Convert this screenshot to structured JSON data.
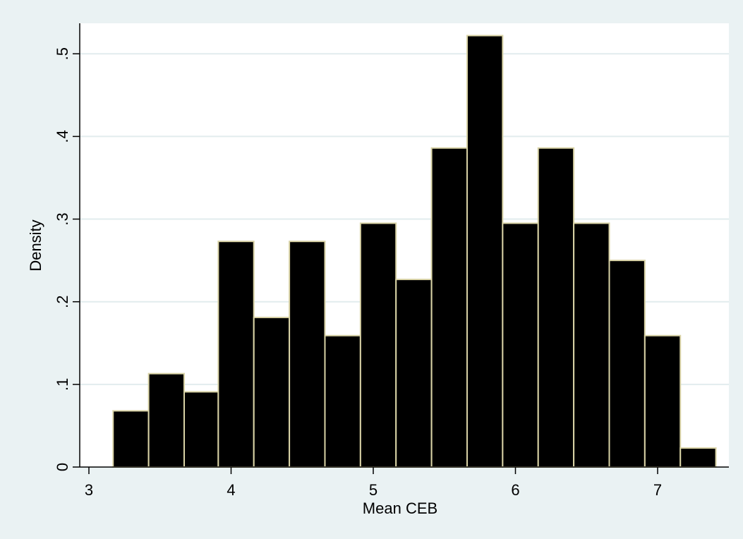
{
  "chart_data": {
    "type": "bar",
    "title": "",
    "xlabel": "Mean CEB",
    "ylabel": "Density",
    "xlim": [
      3,
      7.5
    ],
    "ylim": [
      0,
      0.55
    ],
    "x_ticks": [
      {
        "value": 3,
        "label": "3"
      },
      {
        "value": 4,
        "label": "4"
      },
      {
        "value": 5,
        "label": "5"
      },
      {
        "value": 6,
        "label": "6"
      },
      {
        "value": 7,
        "label": "7"
      }
    ],
    "y_ticks": [
      {
        "value": 0,
        "label": "0"
      },
      {
        "value": 0.1,
        "label": ".1"
      },
      {
        "value": 0.2,
        "label": ".2"
      },
      {
        "value": 0.3,
        "label": ".3"
      },
      {
        "value": 0.4,
        "label": ".4"
      },
      {
        "value": 0.5,
        "label": ".5"
      }
    ],
    "grid": "horizontal",
    "bins": [
      {
        "x0": 3.17,
        "x1": 3.42,
        "value": 0.068
      },
      {
        "x0": 3.42,
        "x1": 3.67,
        "value": 0.113
      },
      {
        "x0": 3.67,
        "x1": 3.91,
        "value": 0.091
      },
      {
        "x0": 3.91,
        "x1": 4.16,
        "value": 0.273
      },
      {
        "x0": 4.16,
        "x1": 4.41,
        "value": 0.181
      },
      {
        "x0": 4.41,
        "x1": 4.66,
        "value": 0.273
      },
      {
        "x0": 4.66,
        "x1": 4.91,
        "value": 0.159
      },
      {
        "x0": 4.91,
        "x1": 5.16,
        "value": 0.295
      },
      {
        "x0": 5.16,
        "x1": 5.41,
        "value": 0.227
      },
      {
        "x0": 5.41,
        "x1": 5.66,
        "value": 0.386
      },
      {
        "x0": 5.66,
        "x1": 5.91,
        "value": 0.522
      },
      {
        "x0": 5.91,
        "x1": 6.16,
        "value": 0.295
      },
      {
        "x0": 6.16,
        "x1": 6.41,
        "value": 0.386
      },
      {
        "x0": 6.41,
        "x1": 6.66,
        "value": 0.295
      },
      {
        "x0": 6.66,
        "x1": 6.91,
        "value": 0.25
      },
      {
        "x0": 6.91,
        "x1": 7.16,
        "value": 0.159
      },
      {
        "x0": 7.16,
        "x1": 7.41,
        "value": 0.023
      }
    ],
    "colors": {
      "background": "#eaf2f3",
      "plot_area": "#ffffff",
      "bar_fill": "#000000",
      "bar_outline": "#d9d3a6",
      "grid": "#e2ecee",
      "axis": "#000000"
    }
  }
}
